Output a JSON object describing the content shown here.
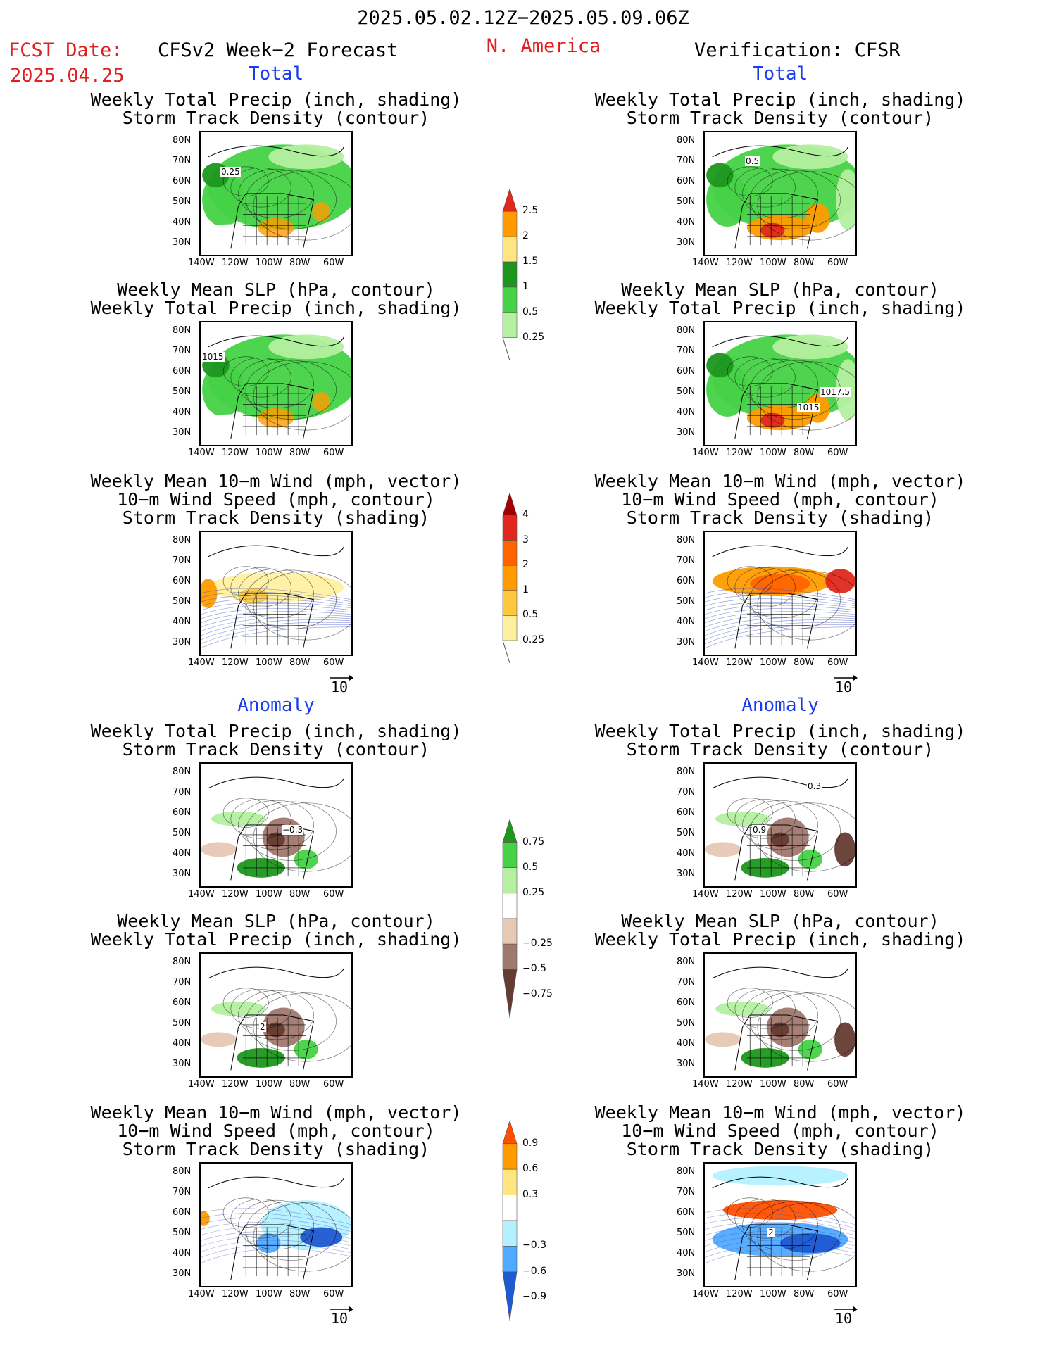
{
  "header": {
    "date_range": "2025.05.02.12Z−2025.05.09.06Z",
    "fcst_label": "FCST Date:",
    "fcst_date": "2025.04.25",
    "left_title": "CFSv2 Week−2 Forecast",
    "region": "N. America",
    "right_title": "Verification: CFSR"
  },
  "sections": {
    "total": "Total",
    "anomaly": "Anomaly"
  },
  "panel_titles": {
    "precip_storm": [
      "Weekly Total Precip (inch, shading)",
      "Storm Track Density (contour)"
    ],
    "slp_precip": [
      "Weekly Mean SLP (hPa, contour)",
      "Weekly Total Precip (inch, shading)"
    ],
    "wind_storm": [
      "Weekly Mean 10−m Wind (mph, vector)",
      "10−m Wind Speed (mph, contour)",
      "Storm Track Density (shading)"
    ]
  },
  "axes": {
    "lat_ticks": [
      "80N",
      "70N",
      "60N",
      "50N",
      "40N",
      "30N"
    ],
    "lon_ticks": [
      "140W",
      "120W",
      "100W",
      "80W",
      "60W"
    ]
  },
  "vector_scale": "10",
  "contour_labels": {
    "fc_total_precip": "0.25",
    "obs_total_precip": "0.5",
    "fc_total_slp": "1015",
    "obs_total_slp_a": "1017.5",
    "obs_total_slp_b": "1015",
    "fc_anom_precip": "−0.3",
    "obs_anom_precip_a": "0.3",
    "obs_anom_precip_b": "0.9",
    "fc_anom_slp": "2",
    "obs_anom_wind": "2"
  },
  "colorbars": [
    {
      "labels": [
        "2.5",
        "2",
        "1.5",
        "1",
        "0.5",
        "0.25"
      ],
      "colors": [
        "#e0281e",
        "#ff9b00",
        "#ffe680",
        "#1e961e",
        "#46d246",
        "#b4f0a0"
      ]
    },
    {
      "labels": [
        "4",
        "3",
        "2",
        "1",
        "0.5",
        "0.25"
      ],
      "colors": [
        "#a00000",
        "#e0281e",
        "#ff6400",
        "#ff9b00",
        "#ffc83c",
        "#fff0a0"
      ]
    },
    {
      "labels": [
        "0.75",
        "0.5",
        "0.25",
        "−0.25",
        "−0.5",
        "−0.75"
      ],
      "colors": [
        "#1e961e",
        "#46d246",
        "#b4f0a0",
        "#ffffff",
        "#e6c8b4",
        "#a0786e",
        "#643c32"
      ]
    },
    {
      "labels": [
        "0.9",
        "0.6",
        "0.3",
        "−0.3",
        "−0.6",
        "−0.9"
      ],
      "colors": [
        "#ff5000",
        "#ff9b00",
        "#ffe680",
        "#ffffff",
        "#b4f0ff",
        "#50aaff",
        "#1e5ad2"
      ]
    }
  ]
}
